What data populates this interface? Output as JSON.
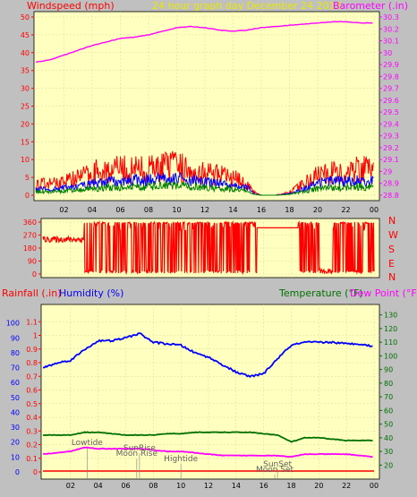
{
  "header": {
    "left_title": "Windspeed (mph)",
    "center_title": "24 hour graph day   December 24 2013",
    "right_title": "Barometer (.in)"
  },
  "direction_labels": [
    "N",
    "W",
    "S",
    "E",
    "N"
  ],
  "bottom_labels": {
    "rainfall": "Rainfall (.in)",
    "humidity": "Humidity (%)",
    "temperature": "Temperature (°F)",
    "dewpoint": "Dew Point (°F)"
  },
  "colors": {
    "plot_bg": "#ffffc0",
    "frame": "#c0c0c0",
    "wind_gust": "#ff0000",
    "wind_avg": "#0000ff",
    "wind_low": "#008000",
    "barometer": "#ff00ff",
    "direction": "#ff0000",
    "rainfall": "#ff0000",
    "humidity": "#0000ff",
    "temperature": "#007000",
    "dewpoint": "#ff00ff"
  },
  "chart_data": [
    {
      "type": "line",
      "panel": "wind-barometer",
      "x_ticks": [
        "02",
        "04",
        "06",
        "08",
        "10",
        "12",
        "14",
        "16",
        "18",
        "20",
        "22",
        "00"
      ],
      "y_left": {
        "label": "Windspeed (mph)",
        "ticks": [
          0,
          5,
          10,
          15,
          20,
          25,
          30,
          35,
          40,
          45,
          50
        ],
        "range": [
          0,
          50
        ]
      },
      "y_right": {
        "label": "Barometer (.in)",
        "ticks": [
          "28.8",
          "28.9",
          "29",
          "29.1",
          "29.2",
          "29.3",
          "29.4",
          "29.5",
          "29.6",
          "29.7",
          "29.8",
          "29.9",
          "30",
          "30.1",
          "30.2",
          "30.3"
        ],
        "range": [
          28.8,
          30.3
        ]
      },
      "barometer": {
        "hours": [
          0,
          1,
          2,
          3,
          4,
          5,
          6,
          7,
          8,
          9,
          10,
          11,
          12,
          13,
          14,
          15,
          16,
          17,
          18,
          19,
          20,
          21,
          22,
          23,
          24
        ],
        "values": [
          29.92,
          29.94,
          29.98,
          30.02,
          30.06,
          30.09,
          30.12,
          30.13,
          30.15,
          30.18,
          30.21,
          30.22,
          30.21,
          30.19,
          30.18,
          30.19,
          30.21,
          30.22,
          30.23,
          30.24,
          30.25,
          30.26,
          30.26,
          30.25,
          30.25
        ]
      },
      "wind_gust_profile": {
        "hours": [
          0,
          1,
          2,
          3,
          4,
          5,
          6,
          7,
          8,
          9,
          10,
          11,
          12,
          13,
          14,
          15,
          15.5,
          16,
          17,
          18,
          19,
          20,
          21,
          22,
          23,
          24
        ],
        "values": [
          4,
          4,
          5,
          6,
          8,
          9,
          9,
          9,
          9,
          10,
          10,
          9,
          8,
          7,
          6,
          4,
          1,
          0,
          0,
          1,
          4,
          7,
          8,
          8,
          9,
          9
        ]
      },
      "wind_avg_profile": {
        "hours": [
          0,
          1,
          2,
          3,
          4,
          5,
          6,
          7,
          8,
          9,
          10,
          11,
          12,
          13,
          14,
          15,
          15.5,
          16,
          17,
          18,
          19,
          20,
          21,
          22,
          23,
          24
        ],
        "values": [
          2,
          2,
          2.5,
          3,
          4,
          4.5,
          4.5,
          5,
          5,
          5.5,
          5.5,
          5,
          4.5,
          4,
          3.5,
          2.5,
          0.5,
          0,
          0,
          0.5,
          2,
          4,
          4.5,
          4.5,
          5,
          5
        ]
      }
    },
    {
      "type": "line",
      "panel": "wind-direction",
      "y_ticks": [
        "0",
        "90",
        "180",
        "270",
        "360"
      ],
      "range": [
        0,
        360
      ],
      "segments": [
        {
          "from": 0,
          "to": 3,
          "base": 240,
          "jitter": 20
        },
        {
          "from": 3,
          "to": 15.5,
          "mode": "random"
        },
        {
          "from": 15.5,
          "to": 18.5,
          "base": 320,
          "jitter": 0
        },
        {
          "from": 18.5,
          "to": 20,
          "mode": "random"
        },
        {
          "from": 20,
          "to": 21,
          "base": 20,
          "jitter": 15
        },
        {
          "from": 21,
          "to": 24,
          "mode": "random"
        }
      ]
    },
    {
      "type": "line",
      "panel": "rain-humidity-temperature",
      "y_rain": {
        "ticks": [
          "0",
          "0.1",
          "0.2",
          "0.3",
          "0.4",
          "0.5",
          "0.6",
          "0.7",
          "0.8",
          "0.9",
          "1",
          "1.1"
        ],
        "range": [
          0,
          1.2
        ]
      },
      "y_humidity": {
        "ticks": [
          "0",
          "10",
          "20",
          "30",
          "40",
          "50",
          "60",
          "70",
          "80",
          "90",
          "100"
        ],
        "range": [
          0,
          110
        ]
      },
      "y_temp": {
        "ticks": [
          "20",
          "30",
          "40",
          "50",
          "60",
          "70",
          "80",
          "90",
          "100",
          "110",
          "120",
          "130"
        ],
        "range": [
          15,
          135
        ]
      },
      "humidity": {
        "hours": [
          0,
          1,
          2,
          3,
          4,
          5,
          6,
          7,
          8,
          9,
          10,
          11,
          12,
          13,
          14,
          15,
          16,
          17,
          18,
          19,
          20,
          21,
          22,
          23,
          24
        ],
        "values": [
          70,
          73,
          75,
          82,
          88,
          88,
          90,
          93,
          87,
          86,
          85,
          80,
          77,
          72,
          67,
          64,
          66,
          76,
          85,
          87,
          87,
          87,
          86,
          86,
          84
        ]
      },
      "temperature": {
        "hours": [
          0,
          1,
          2,
          3,
          4,
          5,
          6,
          7,
          8,
          9,
          10,
          11,
          12,
          13,
          14,
          15,
          16,
          17,
          18,
          19,
          20,
          21,
          22,
          23,
          24
        ],
        "values": [
          42,
          42,
          42,
          44,
          44,
          43,
          42,
          42,
          42,
          43,
          43,
          44,
          44,
          44,
          44,
          44,
          43,
          42,
          37,
          40,
          40,
          39,
          38,
          38,
          38
        ]
      },
      "dewpoint": {
        "hours": [
          0,
          1,
          2,
          3,
          4,
          5,
          6,
          7,
          8,
          9,
          10,
          11,
          12,
          13,
          14,
          15,
          16,
          17,
          18,
          19,
          20,
          21,
          22,
          23,
          24
        ],
        "values": [
          28,
          29,
          30,
          33,
          32,
          32,
          32,
          32,
          31,
          30,
          30,
          29,
          28,
          27,
          27,
          27,
          27,
          27,
          26,
          28,
          28,
          28,
          28,
          27,
          26
        ]
      },
      "rainfall": {
        "values": [
          0
        ]
      },
      "annotations": [
        {
          "text": "Lowtide",
          "hour": 3.2,
          "row": 0
        },
        {
          "text": "SunRise",
          "hour": 7.0,
          "row": 1
        },
        {
          "text": "Moon Rise",
          "hour": 6.8,
          "row": 2
        },
        {
          "text": "Hightide",
          "hour": 10.0,
          "row": 3
        },
        {
          "text": "SunSet",
          "hour": 17.0,
          "row": 4
        },
        {
          "text": "Moon Set",
          "hour": 16.8,
          "row": 5
        }
      ]
    }
  ]
}
